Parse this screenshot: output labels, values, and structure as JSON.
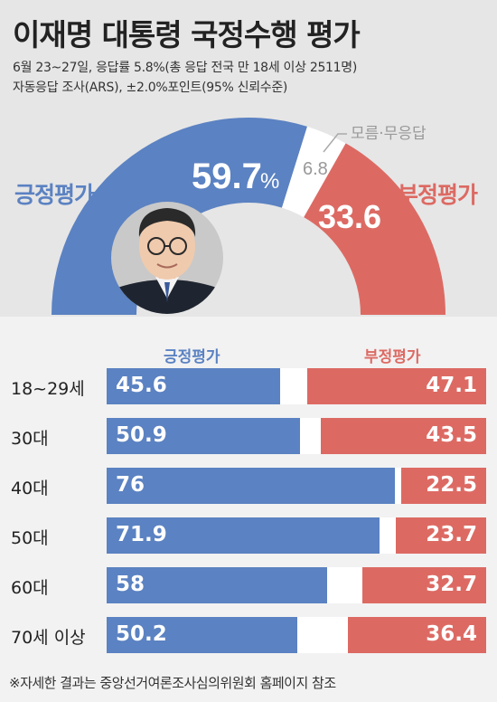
{
  "header": {
    "title": "이재명 대통령 국정수행 평가",
    "subtitle_line1": "6월 23~27일, 응답률 5.8%(총 응답 전국 만 18세 이상 2511명)",
    "subtitle_line2": "자동응답 조사(ARS), ±2.0%포인트(95% 신뢰수준)"
  },
  "colors": {
    "positive": "#5b82c2",
    "negative": "#dc6a63",
    "neutral": "#ffffff"
  },
  "chart_data": [
    {
      "type": "pie",
      "labels": [
        "긍정평가",
        "모름·무응답",
        "부정평가"
      ],
      "values": [
        59.7,
        6.8,
        33.6
      ],
      "value_labels": [
        "59.7",
        "6.8",
        "33.6"
      ],
      "percent_sign": "%"
    },
    {
      "type": "bar",
      "stacked": true,
      "legend": [
        "긍정평가",
        "부정평가"
      ],
      "categories": [
        "18~29세",
        "30대",
        "40대",
        "50대",
        "60대",
        "70세 이상"
      ],
      "series": [
        {
          "name": "긍정평가",
          "values": [
            45.6,
            50.9,
            76,
            71.9,
            58,
            50.2
          ]
        },
        {
          "name": "부정평가",
          "values": [
            47.1,
            43.5,
            22.5,
            23.7,
            32.7,
            36.4
          ]
        }
      ]
    }
  ],
  "footnote": "※자세한 결과는 중앙선거여론조사심의위원회 홈페이지 참조"
}
